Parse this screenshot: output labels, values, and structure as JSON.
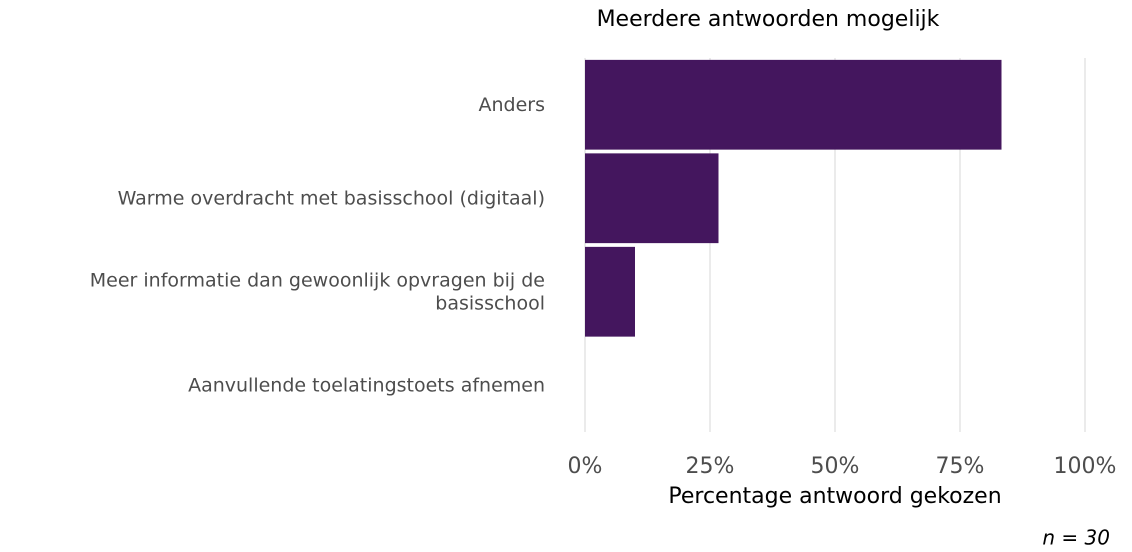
{
  "chart_data": {
    "type": "barh",
    "title": "Meerdere antwoorden mogelijk",
    "xlabel": "Percentage antwoord gekozen",
    "caption": "n = 30",
    "categories": [
      "Anders",
      "Warme overdracht met basisschool (digitaal)",
      "Meer informatie dan gewoonlijk opvragen bij de\nbasisschool",
      "Aanvullende toelatingstoets afnemen"
    ],
    "values": [
      83.3,
      26.7,
      10,
      0
    ],
    "color": "#44165e",
    "xlim": [
      0,
      100
    ],
    "xticks": [
      {
        "value": 0,
        "label": "0%"
      },
      {
        "value": 25,
        "label": "25%"
      },
      {
        "value": 50,
        "label": "50%"
      },
      {
        "value": 75,
        "label": "75%"
      },
      {
        "value": 100,
        "label": "100%"
      }
    ],
    "grid": true
  }
}
